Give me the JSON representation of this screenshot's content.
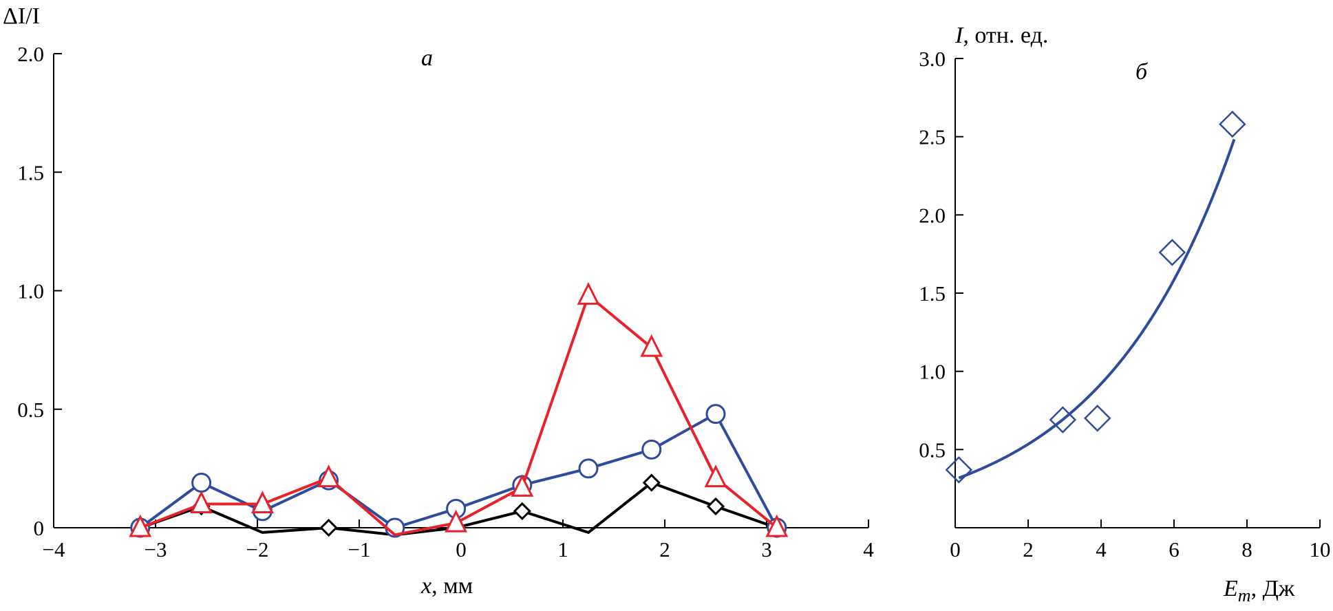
{
  "chart_data": [
    {
      "panel": "a",
      "panel_label": "а",
      "type": "line",
      "ylabel": "ΔI/I",
      "xlabel": {
        "var": "x",
        "unit": ", мм"
      },
      "xlim": [
        -4,
        4
      ],
      "ylim": [
        0,
        2.0
      ],
      "x_ticks": [
        "−4",
        "−3",
        "−2",
        "−1",
        "0",
        "1",
        "2",
        "3",
        "4"
      ],
      "x_tick_values": [
        -4,
        -3,
        -2,
        -1,
        0,
        1,
        2,
        3,
        4
      ],
      "y_ticks": [
        "0",
        "0.5",
        "1.0",
        "1.5",
        "2.0"
      ],
      "y_tick_values": [
        0,
        0.5,
        1.0,
        1.5,
        2.0
      ],
      "series": [
        {
          "name": "diamonds-black",
          "color": "#000000",
          "marker": "diamond",
          "points": [
            {
              "x": -3.15,
              "y": 0.0,
              "m": false
            },
            {
              "x": -2.55,
              "y": 0.09,
              "m": true
            },
            {
              "x": -1.95,
              "y": -0.02,
              "m": false
            },
            {
              "x": -1.3,
              "y": 0.0,
              "m": true
            },
            {
              "x": -0.65,
              "y": -0.03,
              "m": false
            },
            {
              "x": -0.05,
              "y": 0.0,
              "m": false
            },
            {
              "x": 0.6,
              "y": 0.07,
              "m": true
            },
            {
              "x": 1.25,
              "y": -0.02,
              "m": false
            },
            {
              "x": 1.87,
              "y": 0.19,
              "m": true
            },
            {
              "x": 2.5,
              "y": 0.09,
              "m": true
            },
            {
              "x": 3.1,
              "y": 0.0,
              "m": true
            }
          ]
        },
        {
          "name": "circles-blue",
          "color": "#2e4b9c",
          "marker": "circle",
          "points": [
            {
              "x": -3.15,
              "y": 0.0,
              "m": true
            },
            {
              "x": -2.55,
              "y": 0.19,
              "m": true
            },
            {
              "x": -1.95,
              "y": 0.07,
              "m": true
            },
            {
              "x": -1.3,
              "y": 0.2,
              "m": true
            },
            {
              "x": -0.65,
              "y": 0.0,
              "m": true
            },
            {
              "x": -0.05,
              "y": 0.08,
              "m": true
            },
            {
              "x": 0.6,
              "y": 0.18,
              "m": true
            },
            {
              "x": 1.25,
              "y": 0.25,
              "m": true
            },
            {
              "x": 1.87,
              "y": 0.33,
              "m": true
            },
            {
              "x": 2.5,
              "y": 0.48,
              "m": true
            },
            {
              "x": 3.1,
              "y": 0.0,
              "m": true
            }
          ]
        },
        {
          "name": "triangles-red",
          "color": "#e8222a",
          "marker": "triangle",
          "points": [
            {
              "x": -3.15,
              "y": 0.0,
              "m": true
            },
            {
              "x": -2.55,
              "y": 0.1,
              "m": true
            },
            {
              "x": -1.95,
              "y": 0.1,
              "m": true
            },
            {
              "x": -1.3,
              "y": 0.21,
              "m": true
            },
            {
              "x": -0.65,
              "y": -0.03,
              "m": false
            },
            {
              "x": -0.05,
              "y": 0.02,
              "m": true
            },
            {
              "x": 0.6,
              "y": 0.17,
              "m": true
            },
            {
              "x": 1.25,
              "y": 0.98,
              "m": true
            },
            {
              "x": 1.87,
              "y": 0.76,
              "m": true
            },
            {
              "x": 2.5,
              "y": 0.21,
              "m": true
            },
            {
              "x": 3.1,
              "y": 0.0,
              "m": true
            }
          ]
        }
      ]
    },
    {
      "panel": "b",
      "panel_label": "б",
      "type": "scatter",
      "ylabel": {
        "var": "I",
        "unit": ", отн. ед."
      },
      "xlabel": {
        "var": "E",
        "sub": "m",
        "unit": ", Дж"
      },
      "xlim": [
        0,
        10
      ],
      "ylim": [
        0,
        3.0
      ],
      "x_ticks": [
        "0",
        "2",
        "4",
        "6",
        "8",
        "10"
      ],
      "x_tick_values": [
        0,
        2,
        4,
        6,
        8,
        10
      ],
      "y_ticks": [
        "0.5",
        "1.0",
        "1.5",
        "2.0",
        "2.5",
        "3.0"
      ],
      "y_tick_values": [
        0.5,
        1.0,
        1.5,
        2.0,
        2.5,
        3.0
      ],
      "points_series": {
        "name": "measured",
        "color": "#2e4b9c",
        "marker": "diamond",
        "x": [
          0.1,
          2.95,
          3.9,
          5.95,
          7.6
        ],
        "y": [
          0.37,
          0.69,
          0.7,
          1.76,
          2.58
        ]
      },
      "fit_curve": {
        "name": "exponential-fit",
        "color": "#2e4b9c",
        "type": "exponential",
        "a": 0.31,
        "b": 0.272,
        "x_range": [
          0.1,
          7.65
        ]
      }
    }
  ]
}
